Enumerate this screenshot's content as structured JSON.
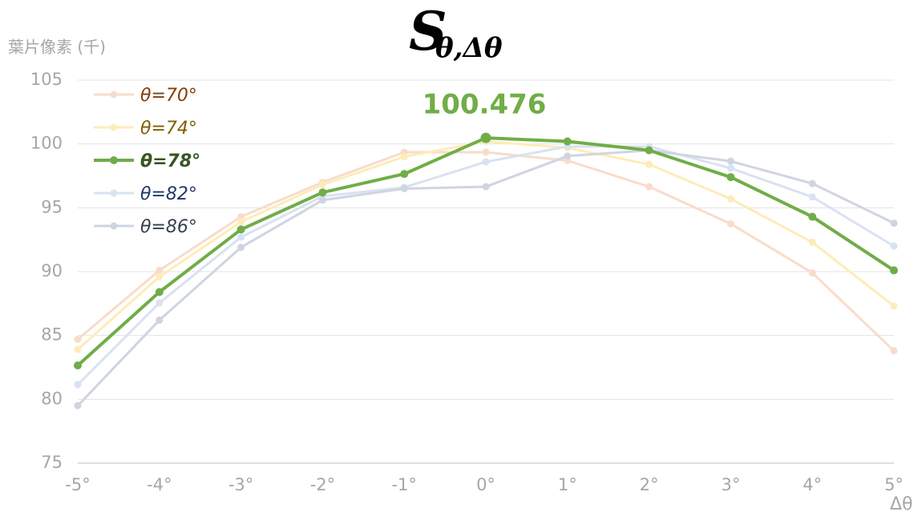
{
  "chart_data": {
    "type": "line",
    "title": {
      "main": "S",
      "subscript": "θ,Δθ"
    },
    "y_axis_label": "葉片像素 (千)",
    "x_axis_label": "Δθ",
    "categories": [
      "-5°",
      "-4°",
      "-3°",
      "-2°",
      "-1°",
      "0°",
      "1°",
      "2°",
      "3°",
      "4°",
      "5°"
    ],
    "ylim": [
      75,
      105
    ],
    "yticks": [
      75,
      80,
      85,
      90,
      95,
      100,
      105
    ],
    "grid": true,
    "legend": "upper left",
    "highlight_series": 2,
    "annotation": {
      "text": "100.476",
      "series": 2,
      "index": 5,
      "color": "#70ad47"
    },
    "series": [
      {
        "name": "θ=70°",
        "color": "#f8dccb",
        "label_color": "#843c0c",
        "values": [
          84.7,
          90.1,
          94.3,
          97.0,
          99.35,
          99.35,
          98.7,
          96.65,
          93.75,
          89.9,
          83.8
        ]
      },
      {
        "name": "θ=74°",
        "color": "#feecb8",
        "label_color": "#7f6000",
        "values": [
          83.9,
          89.6,
          93.9,
          96.8,
          99.0,
          100.2,
          99.7,
          98.4,
          95.7,
          92.3,
          87.3
        ]
      },
      {
        "name": "θ=78°",
        "color": "#70ad47",
        "label_color": "#375623",
        "values": [
          82.65,
          88.4,
          93.3,
          96.2,
          97.65,
          100.476,
          100.2,
          99.5,
          97.4,
          94.3,
          90.1
        ]
      },
      {
        "name": "θ=82°",
        "color": "#d9e2f3",
        "label_color": "#1f3864",
        "values": [
          81.15,
          87.55,
          92.7,
          95.9,
          96.6,
          98.6,
          99.8,
          99.8,
          98.1,
          95.85,
          92.0
        ]
      },
      {
        "name": "θ=86°",
        "color": "#cfd5e0",
        "label_color": "#333f50",
        "values": [
          79.5,
          86.2,
          91.9,
          95.6,
          96.5,
          96.65,
          99.05,
          99.5,
          98.65,
          96.9,
          93.8
        ]
      }
    ]
  }
}
